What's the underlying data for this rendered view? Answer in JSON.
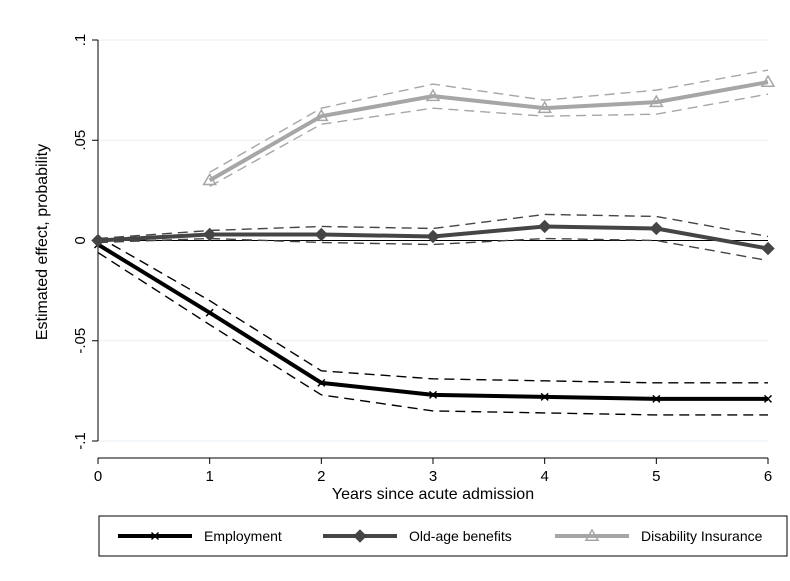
{
  "chart_data": {
    "type": "line",
    "title": "",
    "xlabel": "Years since acute admission",
    "ylabel": "Estimated effect, probability",
    "xlim": [
      0,
      6
    ],
    "ylim": [
      -0.1,
      0.1
    ],
    "x_ticks": [
      0,
      1,
      2,
      3,
      4,
      5,
      6
    ],
    "x_tick_labels": [
      "0",
      "1",
      "2",
      "3",
      "4",
      "5",
      "6"
    ],
    "y_ticks": [
      -0.1,
      -0.05,
      0,
      0.05,
      0.1
    ],
    "y_tick_labels": [
      "-.1",
      "-.05",
      "0",
      ".05",
      ".1"
    ],
    "grid": true,
    "reference_line_y": 0,
    "legend_position": "bottom",
    "series": [
      {
        "name": "Employment",
        "color": "#000000",
        "marker": "x",
        "x": [
          0,
          1,
          2,
          3,
          4,
          5,
          6
        ],
        "values": [
          -0.002,
          -0.036,
          -0.071,
          -0.077,
          -0.078,
          -0.079,
          -0.079
        ],
        "ci_lower": [
          -0.006,
          -0.042,
          -0.077,
          -0.085,
          -0.086,
          -0.087,
          -0.087
        ],
        "ci_upper": [
          0.002,
          -0.03,
          -0.065,
          -0.069,
          -0.07,
          -0.071,
          -0.071
        ]
      },
      {
        "name": "Old-age benefits",
        "color": "#454545",
        "marker": "diamond",
        "x": [
          0,
          1,
          2,
          3,
          4,
          5,
          6
        ],
        "values": [
          0.0,
          0.003,
          0.003,
          0.002,
          0.007,
          0.006,
          -0.004
        ],
        "ci_lower": [
          -0.001,
          0.001,
          -0.001,
          -0.002,
          0.001,
          0.0,
          -0.01
        ],
        "ci_upper": [
          0.001,
          0.005,
          0.007,
          0.006,
          0.013,
          0.012,
          0.002
        ]
      },
      {
        "name": "Disability Insurance",
        "color": "#a6a6a6",
        "marker": "triangle",
        "x": [
          1,
          2,
          3,
          4,
          5,
          6
        ],
        "values": [
          0.03,
          0.062,
          0.072,
          0.066,
          0.069,
          0.079
        ],
        "ci_lower": [
          0.027,
          0.058,
          0.066,
          0.062,
          0.063,
          0.073
        ],
        "ci_upper": [
          0.034,
          0.066,
          0.078,
          0.07,
          0.075,
          0.085
        ]
      }
    ]
  }
}
